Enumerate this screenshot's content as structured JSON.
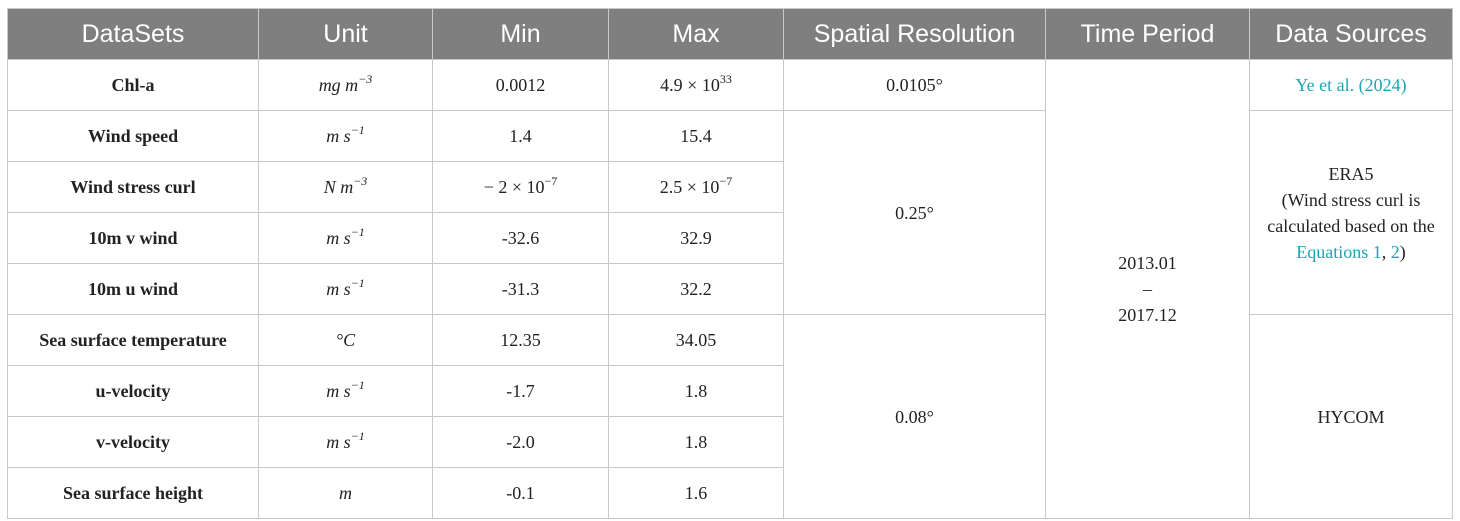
{
  "table": {
    "headers": [
      "DataSets",
      "Unit",
      "Min",
      "Max",
      "Spatial Resolution",
      "Time Period",
      "Data Sources"
    ],
    "rows": [
      {
        "dataset": "Chl-a",
        "unit": {
          "base": "mg  m",
          "exp": "−3"
        },
        "min": {
          "base": "0.0012"
        },
        "max": {
          "base": "4.9 × 10",
          "exp": "33"
        }
      },
      {
        "dataset": "Wind speed",
        "unit": {
          "base": "m  s",
          "exp": "−1"
        },
        "min": {
          "base": "1.4"
        },
        "max": {
          "base": "15.4"
        }
      },
      {
        "dataset": "Wind stress curl",
        "unit": {
          "base": "N  m",
          "exp": "−3"
        },
        "min": {
          "base": "− 2 × 10",
          "exp": "−7"
        },
        "max": {
          "base": "2.5 × 10",
          "exp": "−7"
        }
      },
      {
        "dataset": "10m v wind",
        "unit": {
          "base": "m  s",
          "exp": "−1"
        },
        "min": {
          "base": "-32.6"
        },
        "max": {
          "base": "32.9"
        }
      },
      {
        "dataset": "10m u wind",
        "unit": {
          "base": "m  s",
          "exp": "−1"
        },
        "min": {
          "base": "-31.3"
        },
        "max": {
          "base": "32.2"
        }
      },
      {
        "dataset": "Sea surface temperature",
        "unit": {
          "base": "°C"
        },
        "min": {
          "base": "12.35"
        },
        "max": {
          "base": "34.05"
        }
      },
      {
        "dataset": "u-velocity",
        "unit": {
          "base": "m  s",
          "exp": "−1"
        },
        "min": {
          "base": "-1.7"
        },
        "max": {
          "base": "1.8"
        }
      },
      {
        "dataset": "v-velocity",
        "unit": {
          "base": "m  s",
          "exp": "−1"
        },
        "min": {
          "base": "-2.0"
        },
        "max": {
          "base": "1.8"
        }
      },
      {
        "dataset": "Sea surface height",
        "unit": {
          "base": "m"
        },
        "min": {
          "base": "-0.1"
        },
        "max": {
          "base": "1.6"
        }
      }
    ],
    "spatial_resolution": [
      "0.0105°",
      "0.25°",
      "0.08°"
    ],
    "time_period": {
      "start": "2013.01",
      "dash": "–",
      "end": "2017.12"
    },
    "data_sources": {
      "ye": "Ye et al. (2024)",
      "era5": {
        "name": "ERA5",
        "note": "(Wind stress curl is calculated based on the",
        "link1": "Equations 1",
        "sep": ",",
        "link2": "2",
        "close": ")"
      },
      "hycom": "HYCOM"
    }
  }
}
